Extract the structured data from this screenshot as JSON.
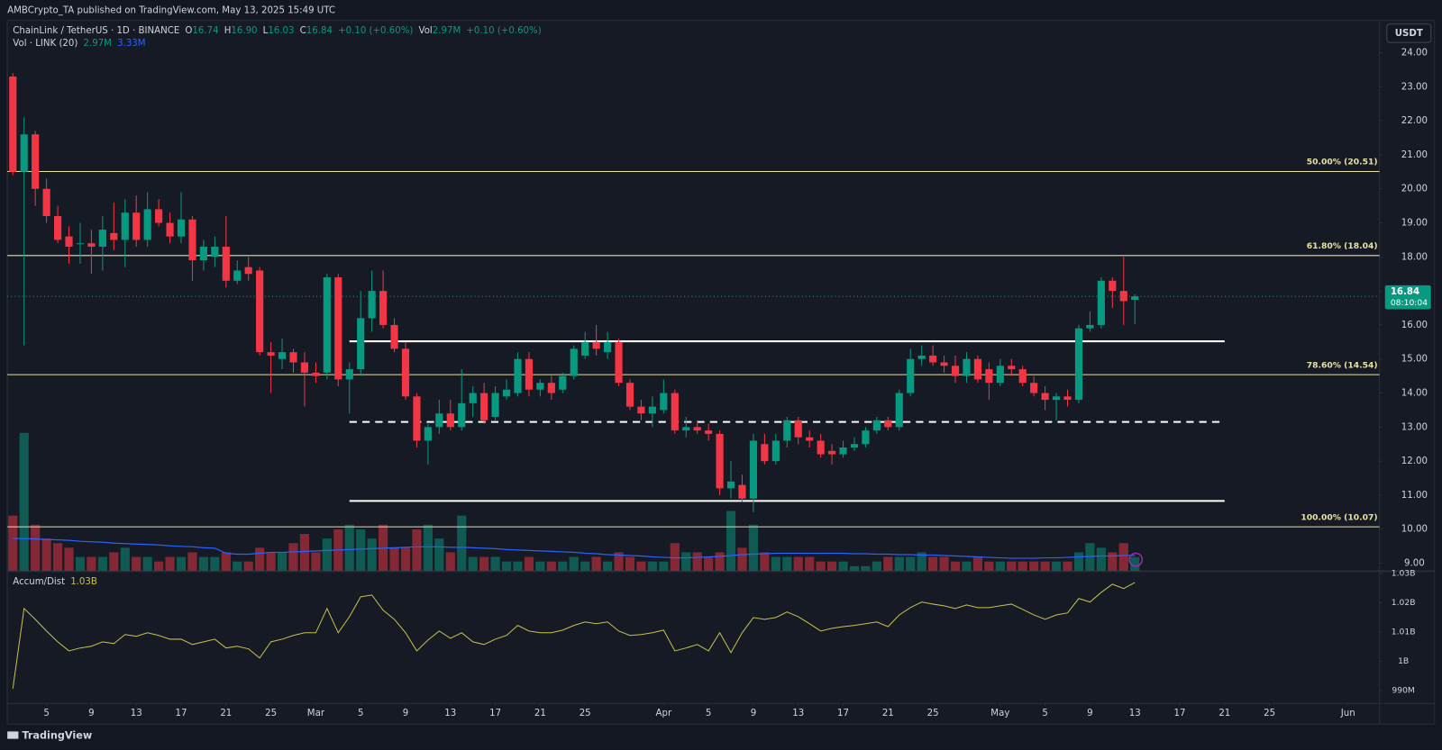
{
  "header": {
    "published": "AMBCrypto_TA published on TradingView.com, May 13, 2025 15:49 UTC"
  },
  "legend": {
    "title": "ChainLink / TetherUS · 1D · BINANCE",
    "items": [
      {
        "key": "O",
        "value": "16.74"
      },
      {
        "key": "H",
        "value": "16.90"
      },
      {
        "key": "L",
        "value": "16.03"
      },
      {
        "key": "C",
        "value": "16.84"
      },
      {
        "value": "+0.10 (+0.60%)"
      },
      {
        "key": "Vol",
        "value": "2.97M"
      },
      {
        "value": "+0.10 (+0.60%)"
      }
    ],
    "volume_title": "Vol · LINK (20)",
    "volume_value": "2.97M",
    "volume_ma": "3.33M"
  },
  "toolbar": {
    "currency": "USDT"
  },
  "price_tag": {
    "price": 16.84,
    "countdown": "08:10:04"
  },
  "footer": {
    "brand": "TradingView"
  },
  "chart_data": [
    {
      "type": "candlestick",
      "colors": {
        "up": "#089981",
        "down": "#f23645",
        "ma": "#2962ff",
        "level": "#e8e1a2",
        "line": "#ffffff"
      },
      "xlim": [
        32.51,
        154.8
      ],
      "ylim": [
        8.78,
        24.95
      ],
      "grid": false,
      "xticks": [
        {
          "value": 36,
          "label": "5"
        },
        {
          "value": 40,
          "label": "9"
        },
        {
          "value": 44,
          "label": "13"
        },
        {
          "value": 48,
          "label": "17"
        },
        {
          "value": 52,
          "label": "21"
        },
        {
          "value": 56,
          "label": "25"
        },
        {
          "value": 60,
          "label": "Mar"
        },
        {
          "value": 64,
          "label": "5"
        },
        {
          "value": 68,
          "label": "9"
        },
        {
          "value": 72,
          "label": "13"
        },
        {
          "value": 76,
          "label": "17"
        },
        {
          "value": 80,
          "label": "21"
        },
        {
          "value": 84,
          "label": "25"
        },
        {
          "value": 91,
          "label": "Apr"
        },
        {
          "value": 95,
          "label": "5"
        },
        {
          "value": 99,
          "label": "9"
        },
        {
          "value": 103,
          "label": "13"
        },
        {
          "value": 107,
          "label": "17"
        },
        {
          "value": 111,
          "label": "21"
        },
        {
          "value": 115,
          "label": "25"
        },
        {
          "value": 121,
          "label": "May"
        },
        {
          "value": 125,
          "label": "5"
        },
        {
          "value": 129,
          "label": "9"
        },
        {
          "value": 133,
          "label": "13"
        },
        {
          "value": 137,
          "label": "17"
        },
        {
          "value": 141,
          "label": "21"
        },
        {
          "value": 145,
          "label": "25"
        },
        {
          "value": 152,
          "label": "Jun"
        }
      ],
      "yticks": [
        {
          "value": 9,
          "label": "9.00"
        },
        {
          "value": 10,
          "label": "10.00"
        },
        {
          "value": 11,
          "label": "11.00"
        },
        {
          "value": 12,
          "label": "12.00"
        },
        {
          "value": 13,
          "label": "13.00"
        },
        {
          "value": 14,
          "label": "14.00"
        },
        {
          "value": 15,
          "label": "15.00"
        },
        {
          "value": 16,
          "label": "16.00"
        },
        {
          "value": 17,
          "label": "17.00"
        },
        {
          "value": 18,
          "label": "18.00"
        },
        {
          "value": 19,
          "label": "19.00"
        },
        {
          "value": 20,
          "label": "20.00"
        },
        {
          "value": 21,
          "label": "21.00"
        },
        {
          "value": 22,
          "label": "22.00"
        },
        {
          "value": 23,
          "label": "23.00"
        },
        {
          "value": 24,
          "label": "24.00"
        }
      ],
      "x": [
        33,
        34,
        35,
        36,
        37,
        38,
        39,
        40,
        41,
        42,
        43,
        44,
        45,
        46,
        47,
        48,
        49,
        50,
        51,
        52,
        53,
        54,
        55,
        56,
        57,
        58,
        59,
        60,
        61,
        62,
        63,
        64,
        65,
        66,
        67,
        68,
        69,
        70,
        71,
        72,
        73,
        74,
        75,
        76,
        77,
        78,
        79,
        80,
        81,
        82,
        83,
        84,
        85,
        86,
        87,
        88,
        89,
        90,
        91,
        92,
        93,
        94,
        95,
        96,
        97,
        98,
        99,
        100,
        101,
        102,
        103,
        104,
        105,
        106,
        107,
        108,
        109,
        110,
        111,
        112,
        113,
        114,
        115,
        116,
        117,
        118,
        119,
        120,
        121,
        122,
        123,
        124,
        125,
        126,
        127,
        128,
        129,
        130,
        131,
        132,
        133
      ],
      "ohlc": [
        [
          23.3,
          23.4,
          20.4,
          20.5
        ],
        [
          20.5,
          22.1,
          15.4,
          21.6
        ],
        [
          21.6,
          21.7,
          19.5,
          20.0
        ],
        [
          20.0,
          20.3,
          19.0,
          19.2
        ],
        [
          19.2,
          19.5,
          18.4,
          18.5
        ],
        [
          18.6,
          18.9,
          17.8,
          18.3
        ],
        [
          18.4,
          19.0,
          17.8,
          18.4
        ],
        [
          18.4,
          18.8,
          17.5,
          18.3
        ],
        [
          18.3,
          19.2,
          17.6,
          18.8
        ],
        [
          18.7,
          19.6,
          18.2,
          18.5
        ],
        [
          18.5,
          19.7,
          17.7,
          19.3
        ],
        [
          19.3,
          19.8,
          18.3,
          18.5
        ],
        [
          18.5,
          19.9,
          18.3,
          19.4
        ],
        [
          19.4,
          19.7,
          18.9,
          19.0
        ],
        [
          19.0,
          19.3,
          18.4,
          18.6
        ],
        [
          18.6,
          19.9,
          18.4,
          19.1
        ],
        [
          19.1,
          19.2,
          17.3,
          17.9
        ],
        [
          17.9,
          18.5,
          17.6,
          18.3
        ],
        [
          18.0,
          18.6,
          17.7,
          18.3
        ],
        [
          18.3,
          19.2,
          17.1,
          17.3
        ],
        [
          17.3,
          17.9,
          17.2,
          17.6
        ],
        [
          17.7,
          18.0,
          17.3,
          17.5
        ],
        [
          17.6,
          17.7,
          15.1,
          15.2
        ],
        [
          15.2,
          15.5,
          14.0,
          15.1
        ],
        [
          15.0,
          15.6,
          14.7,
          15.2
        ],
        [
          15.2,
          15.3,
          14.6,
          14.9
        ],
        [
          14.9,
          15.2,
          13.6,
          14.6
        ],
        [
          14.6,
          14.9,
          14.3,
          14.5
        ],
        [
          14.6,
          17.5,
          14.4,
          17.4
        ],
        [
          17.4,
          17.5,
          14.2,
          14.4
        ],
        [
          14.4,
          14.9,
          13.4,
          14.7
        ],
        [
          14.7,
          17.0,
          14.5,
          16.2
        ],
        [
          16.2,
          17.6,
          15.8,
          17.0
        ],
        [
          17.0,
          17.6,
          15.9,
          16.0
        ],
        [
          16.0,
          16.2,
          15.2,
          15.3
        ],
        [
          15.3,
          15.5,
          13.8,
          13.9
        ],
        [
          13.9,
          14.0,
          12.4,
          12.6
        ],
        [
          12.6,
          13.1,
          11.9,
          13.0
        ],
        [
          13.0,
          13.8,
          12.8,
          13.4
        ],
        [
          13.4,
          13.8,
          12.9,
          13.0
        ],
        [
          13.0,
          14.7,
          12.9,
          13.7
        ],
        [
          13.7,
          14.2,
          13.3,
          14.0
        ],
        [
          14.0,
          14.3,
          13.1,
          13.2
        ],
        [
          13.3,
          14.2,
          13.2,
          14.0
        ],
        [
          13.9,
          14.4,
          13.8,
          14.1
        ],
        [
          14.0,
          15.2,
          13.9,
          15.0
        ],
        [
          15.0,
          15.2,
          13.9,
          14.1
        ],
        [
          14.1,
          14.4,
          13.9,
          14.3
        ],
        [
          14.3,
          14.5,
          13.8,
          14.0
        ],
        [
          14.1,
          14.6,
          14.0,
          14.5
        ],
        [
          14.5,
          15.4,
          14.4,
          15.3
        ],
        [
          15.1,
          15.8,
          15.0,
          15.5
        ],
        [
          15.5,
          16.0,
          15.1,
          15.3
        ],
        [
          15.2,
          15.8,
          15.0,
          15.5
        ],
        [
          15.5,
          15.6,
          14.2,
          14.3
        ],
        [
          14.3,
          14.4,
          13.5,
          13.6
        ],
        [
          13.6,
          13.8,
          13.2,
          13.4
        ],
        [
          13.4,
          13.9,
          13.0,
          13.6
        ],
        [
          13.5,
          14.4,
          13.4,
          14.0
        ],
        [
          14.0,
          14.1,
          12.8,
          12.9
        ],
        [
          12.9,
          13.3,
          12.7,
          13.0
        ],
        [
          13.0,
          13.2,
          12.8,
          12.9
        ],
        [
          12.9,
          13.1,
          12.6,
          12.8
        ],
        [
          12.8,
          12.9,
          11.0,
          11.2
        ],
        [
          11.2,
          12.0,
          10.9,
          11.4
        ],
        [
          11.3,
          11.6,
          10.8,
          10.9
        ],
        [
          10.9,
          12.8,
          10.5,
          12.6
        ],
        [
          12.5,
          12.8,
          11.9,
          12.0
        ],
        [
          12.0,
          12.8,
          11.9,
          12.6
        ],
        [
          12.6,
          13.3,
          12.4,
          13.2
        ],
        [
          13.2,
          13.3,
          12.5,
          12.7
        ],
        [
          12.7,
          12.9,
          12.4,
          12.6
        ],
        [
          12.6,
          12.8,
          12.1,
          12.2
        ],
        [
          12.3,
          12.5,
          11.9,
          12.2
        ],
        [
          12.2,
          12.6,
          12.1,
          12.4
        ],
        [
          12.4,
          12.7,
          12.3,
          12.5
        ],
        [
          12.5,
          13.0,
          12.4,
          12.9
        ],
        [
          12.9,
          13.3,
          12.8,
          13.2
        ],
        [
          13.2,
          13.3,
          12.9,
          13.0
        ],
        [
          13.0,
          14.1,
          12.9,
          14.0
        ],
        [
          14.0,
          15.3,
          13.9,
          15.0
        ],
        [
          15.0,
          15.4,
          14.8,
          15.1
        ],
        [
          15.1,
          15.4,
          14.8,
          14.9
        ],
        [
          14.9,
          15.1,
          14.6,
          14.8
        ],
        [
          14.8,
          15.1,
          14.3,
          14.5
        ],
        [
          14.5,
          15.2,
          14.3,
          15.0
        ],
        [
          15.0,
          15.1,
          14.3,
          14.4
        ],
        [
          14.7,
          14.9,
          13.8,
          14.3
        ],
        [
          14.3,
          15.0,
          14.2,
          14.8
        ],
        [
          14.8,
          15.0,
          14.5,
          14.7
        ],
        [
          14.7,
          14.8,
          14.2,
          14.3
        ],
        [
          14.3,
          14.5,
          13.9,
          14.0
        ],
        [
          14.0,
          14.2,
          13.5,
          13.8
        ],
        [
          13.8,
          14.0,
          13.2,
          13.9
        ],
        [
          13.9,
          14.1,
          13.6,
          13.8
        ],
        [
          13.8,
          16.0,
          13.7,
          15.9
        ],
        [
          15.9,
          16.4,
          15.8,
          16.0
        ],
        [
          16.0,
          17.4,
          15.9,
          17.3
        ],
        [
          17.3,
          17.4,
          16.5,
          17.0
        ],
        [
          17.0,
          18.0,
          16.0,
          16.7
        ],
        [
          16.74,
          16.9,
          16.03,
          16.84
        ]
      ],
      "volume": [
        12,
        30,
        10,
        7,
        6,
        5,
        3,
        3,
        3,
        4,
        5,
        3,
        3,
        2,
        3,
        3,
        4,
        3,
        3,
        4,
        2,
        2,
        5,
        4,
        4,
        6,
        8,
        4,
        7,
        9,
        10,
        9,
        7,
        10,
        5,
        5,
        9,
        10,
        7,
        4,
        12,
        3,
        3,
        3,
        2,
        2,
        3,
        2,
        2,
        2,
        3,
        2,
        3,
        2,
        4,
        3,
        2,
        2,
        2,
        6,
        4,
        4,
        3,
        4,
        13,
        5,
        10,
        4,
        3,
        3,
        3,
        3,
        2,
        2,
        2,
        1,
        1,
        2,
        3,
        3,
        3,
        4,
        3,
        3,
        2,
        2,
        3,
        2,
        2,
        2,
        2,
        2,
        2,
        2,
        2,
        4,
        6,
        5,
        4,
        6,
        2.97
      ],
      "volume_ma": [
        7.0,
        7.0,
        6.9,
        6.8,
        6.7,
        6.6,
        6.4,
        6.3,
        6.2,
        6.0,
        5.9,
        5.8,
        5.7,
        5.6,
        5.4,
        5.3,
        5.2,
        5.0,
        4.9,
        3.8,
        3.6,
        3.6,
        3.8,
        4.0,
        4.0,
        4.1,
        4.2,
        4.3,
        4.4,
        4.5,
        4.6,
        4.7,
        4.8,
        4.9,
        5.0,
        5.1,
        5.2,
        5.2,
        5.2,
        5.1,
        5.1,
        5.0,
        4.9,
        4.8,
        4.6,
        4.5,
        4.4,
        4.3,
        4.2,
        4.1,
        4.0,
        3.8,
        3.7,
        3.5,
        3.4,
        3.3,
        3.2,
        3.0,
        2.9,
        2.8,
        2.8,
        2.9,
        3.0,
        3.1,
        3.3,
        3.5,
        3.6,
        3.7,
        3.8,
        3.8,
        3.8,
        3.8,
        3.8,
        3.8,
        3.8,
        3.7,
        3.7,
        3.6,
        3.6,
        3.5,
        3.5,
        3.4,
        3.4,
        3.3,
        3.2,
        3.1,
        3.0,
        2.9,
        2.8,
        2.7,
        2.7,
        2.7,
        2.8,
        2.8,
        2.9,
        3.0,
        3.1,
        3.2,
        3.2,
        3.3,
        3.33
      ],
      "levels": [
        {
          "value": 20.51,
          "label": "50.00% (20.51)"
        },
        {
          "value": 18.04,
          "label": "61.80% (18.04)"
        },
        {
          "value": 14.54,
          "label": "78.60% (14.54)"
        },
        {
          "value": 10.07,
          "label": "100.00% (10.07)"
        }
      ],
      "lines": [
        {
          "value": 15.52,
          "x0": 63,
          "x1": 141,
          "dashed": false
        },
        {
          "value": 13.15,
          "x0": 63,
          "x1": 141,
          "dashed": true
        },
        {
          "value": 10.83,
          "x0": 63,
          "x1": 141,
          "dashed": false
        }
      ]
    },
    {
      "type": "line",
      "title": "Accum/Dist",
      "last_label": "1.03B",
      "color": "#c8c04a",
      "ylim": [
        0.9857,
        1.0306
      ],
      "yticks": [
        {
          "value": 1.03,
          "label": "1.03B"
        },
        {
          "value": 1.02,
          "label": "1.02B"
        },
        {
          "value": 1.01,
          "label": "1.01B"
        },
        {
          "value": 1,
          "label": "1B"
        },
        {
          "value": 0.99,
          "label": "990M"
        }
      ],
      "values": [
        0.9906,
        1.018,
        1.0143,
        1.0103,
        1.0066,
        1.0035,
        1.0045,
        1.0051,
        1.0066,
        1.006,
        1.0091,
        1.0085,
        1.0097,
        1.0088,
        1.0075,
        1.0075,
        1.0057,
        1.0066,
        1.0075,
        1.0045,
        1.0051,
        1.0042,
        1.0011,
        1.0066,
        1.0075,
        1.0088,
        1.0097,
        1.0097,
        1.018,
        1.0097,
        1.0152,
        1.022,
        1.0226,
        1.0174,
        1.0143,
        1.0097,
        1.0035,
        1.0072,
        1.0103,
        1.0078,
        1.0097,
        1.0066,
        1.0057,
        1.0075,
        1.0088,
        1.0122,
        1.0103,
        1.0097,
        1.0097,
        1.0106,
        1.0122,
        1.0134,
        1.0128,
        1.0134,
        1.0103,
        1.0088,
        1.0091,
        1.0097,
        1.0106,
        1.0035,
        1.0045,
        1.0057,
        1.0035,
        1.0097,
        1.0029,
        1.0097,
        1.0149,
        1.0143,
        1.0149,
        1.0168,
        1.0152,
        1.0128,
        1.0103,
        1.0112,
        1.0118,
        1.0122,
        1.0128,
        1.0134,
        1.0118,
        1.0158,
        1.0183,
        1.0202,
        1.0195,
        1.0189,
        1.018,
        1.0192,
        1.0183,
        1.0183,
        1.0189,
        1.0195,
        1.0177,
        1.0158,
        1.0143,
        1.0158,
        1.0165,
        1.0214,
        1.0202,
        1.0235,
        1.0263,
        1.0248,
        1.0269
      ]
    }
  ]
}
